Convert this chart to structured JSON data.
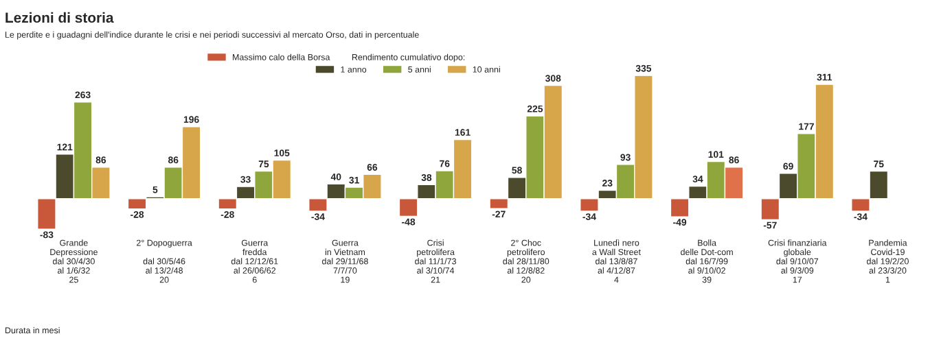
{
  "chart_data": {
    "type": "bar",
    "title": "Lezioni di storia",
    "subtitle": "Le perdite e i guadagni dell'indice durante le crisi e nei periodi successivi al mercato Orso, dati in percentuale",
    "categories": [
      "Grande\nDepressione\ndal 30/4/30\nal 1/6/32\n25",
      "2° Dopoguerra\n\ndal 30/5/46\nal 13/2/48\n20",
      "Guerra\nfredda\ndal 12/12/61\nal 26/06/62\n6",
      "Guerra\nin Vietnam\ndal 29/11/68\n7/7/70\n19",
      "Crisi\npetrolifera\ndal 11/1/73\nal 3/10/74\n21",
      "2° Choc\npetrolifero\ndal 28/11/80\nal 12/8/82\n20",
      "Lunedì nero\na Wall Street\ndal 13/8/87\nal 4/12/87\n4",
      "Bolla\ndelle Dot-com\ndal 16/7/99\nal 9/10/02\n39",
      "Crisi finanziaria\nglobale\ndal 9/10/07\nal 9/3/09\n17",
      "Pandemia\nCovid-19\ndal 19/2/20\nal 23/3/20\n1"
    ],
    "series": [
      {
        "name": "Massimo calo della Borsa",
        "color": "#c9583b",
        "values": [
          -83,
          -28,
          -28,
          -34,
          -48,
          -27,
          -34,
          -49,
          -57,
          -34
        ]
      },
      {
        "name": "1 anno",
        "color": "#4b4a2c",
        "values": [
          121,
          5,
          33,
          40,
          38,
          58,
          23,
          34,
          69,
          75
        ]
      },
      {
        "name": "5 anni",
        "color": "#8fa63d",
        "values": [
          263,
          86,
          75,
          31,
          76,
          225,
          93,
          101,
          177,
          null
        ]
      },
      {
        "name": "10 anni",
        "color": "#d7a64b",
        "colors": [
          "#d7a64b",
          "#d7a64b",
          "#d7a64b",
          "#d7a64b",
          "#d7a64b",
          "#d7a64b",
          "#d7a64b",
          "#e0714a",
          "#d7a64b",
          "#d7a64b"
        ],
        "values": [
          86,
          196,
          105,
          66,
          161,
          308,
          335,
          86,
          311,
          null
        ]
      }
    ],
    "legend_title": "Rendimento cumulativo dopo:",
    "legend": "top",
    "data_labels": true,
    "annotations": [
      "Durata in mesi"
    ]
  }
}
